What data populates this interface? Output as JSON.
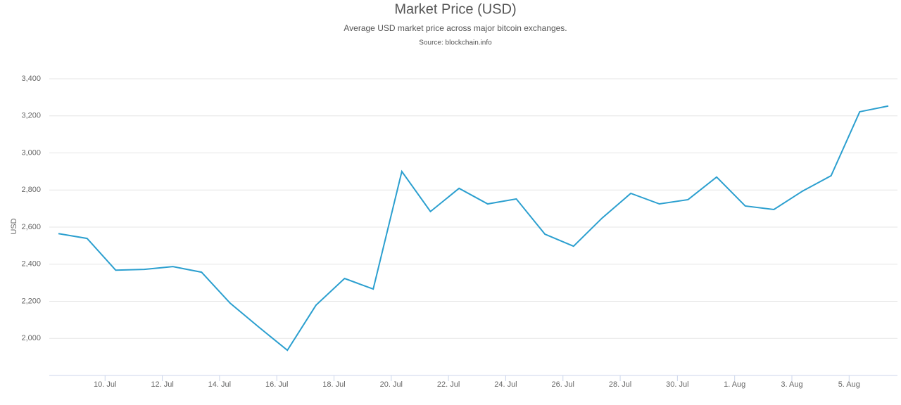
{
  "chart_data": {
    "type": "line",
    "title": "Market Price (USD)",
    "subtitle": "Average USD market price across major bitcoin exchanges.",
    "source": "Source: blockchain.info",
    "y_label": "USD",
    "x": [
      "8. Jul",
      "9. Jul",
      "10. Jul",
      "11. Jul",
      "12. Jul",
      "13. Jul",
      "14. Jul",
      "15. Jul",
      "16. Jul",
      "17. Jul",
      "18. Jul",
      "19. Jul",
      "20. Jul",
      "21. Jul",
      "22. Jul",
      "23. Jul",
      "24. Jul",
      "25. Jul",
      "26. Jul",
      "27. Jul",
      "28. Jul",
      "29. Jul",
      "30. Jul",
      "31. Jul",
      "1. Aug",
      "2. Aug",
      "3. Aug",
      "4. Aug",
      "5. Aug",
      "6. Aug"
    ],
    "series": [
      {
        "name": "Market Price",
        "color": "#2b9fcf",
        "values": [
          2565,
          2539,
          2368,
          2372,
          2387,
          2357,
          2190,
          2061,
          1936,
          2179,
          2323,
          2266,
          2900,
          2684,
          2809,
          2725,
          2752,
          2562,
          2497,
          2649,
          2782,
          2725,
          2748,
          2870,
          2714,
          2695,
          2794,
          2877,
          3222,
          3253
        ]
      }
    ],
    "xlim": [
      "8. Jul",
      "6. Aug"
    ],
    "xticks": [
      "10. Jul",
      "12. Jul",
      "14. Jul",
      "16. Jul",
      "18. Jul",
      "20. Jul",
      "22. Jul",
      "24. Jul",
      "26. Jul",
      "28. Jul",
      "30. Jul",
      "1. Aug",
      "3. Aug",
      "5. Aug"
    ],
    "ylim": [
      1800,
      3400
    ],
    "yticks": [
      {
        "value": 2000,
        "label": "2,000"
      },
      {
        "value": 2200,
        "label": "2,200"
      },
      {
        "value": 2400,
        "label": "2,400"
      },
      {
        "value": 2600,
        "label": "2,600"
      },
      {
        "value": 2800,
        "label": "2,800"
      },
      {
        "value": 3000,
        "label": "3,000"
      },
      {
        "value": 3200,
        "label": "3,200"
      },
      {
        "value": 3400,
        "label": "3,400"
      }
    ],
    "grid": true
  }
}
